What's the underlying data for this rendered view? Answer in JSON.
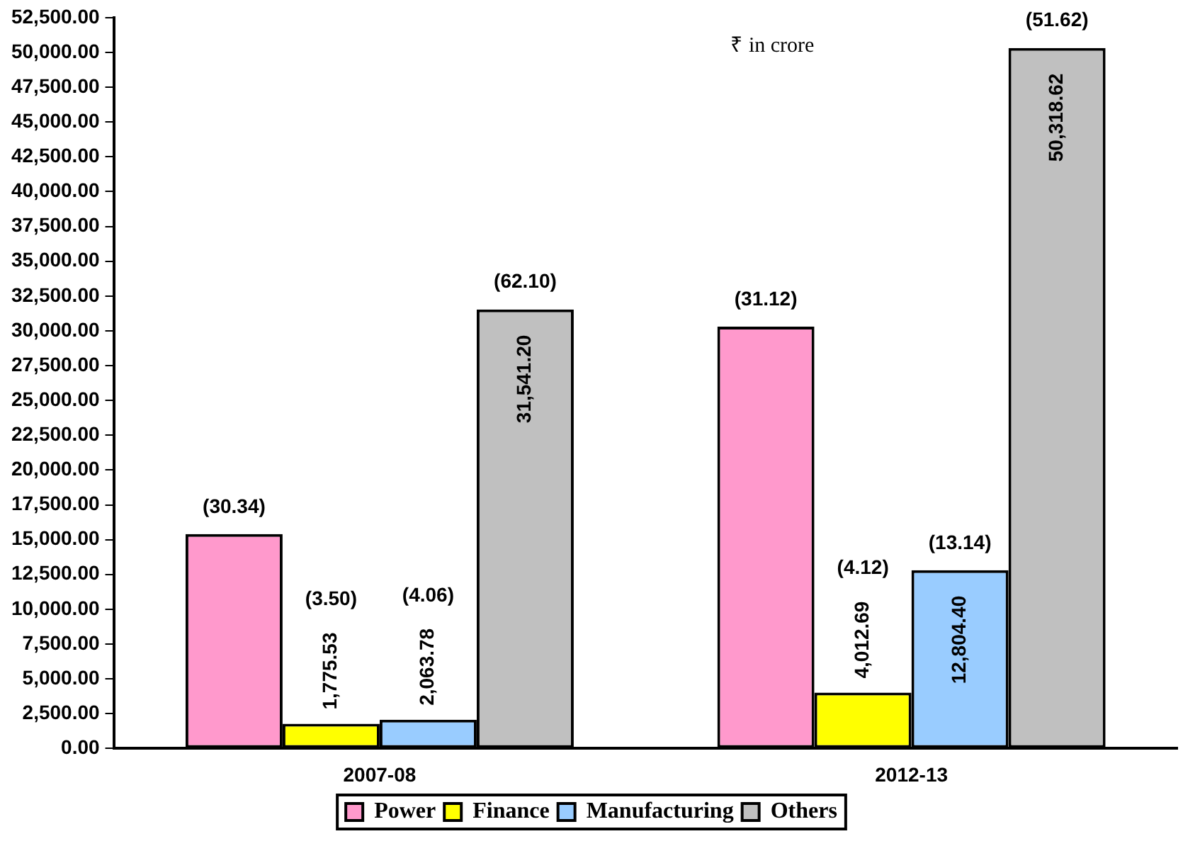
{
  "chart_data": {
    "type": "bar",
    "categories": [
      "2007-08",
      "2012-13"
    ],
    "series": [
      {
        "name": "Power",
        "color": "#ff99cc",
        "values": [
          15400,
          30300
        ],
        "value_labels": [
          null,
          null
        ]
      },
      {
        "name": "Finance",
        "color": "#ffff00",
        "values": [
          1775.53,
          4012.69
        ],
        "value_labels": [
          "1,775.53",
          "4,012.69"
        ]
      },
      {
        "name": "Manufacturing",
        "color": "#99ccff",
        "values": [
          2063.78,
          12804.4
        ],
        "value_labels": [
          "2,063.78",
          "12,804.40"
        ]
      },
      {
        "name": "Others",
        "color": "#c0c0c0",
        "values": [
          31541.2,
          50318.62
        ],
        "value_labels": [
          "31,541.20",
          "50,318.62"
        ]
      }
    ],
    "ylim": [
      0,
      52500
    ],
    "yticks": [
      {
        "value": 0,
        "label": "0.00"
      },
      {
        "value": 2500,
        "label": "2,500.00"
      },
      {
        "value": 5000,
        "label": "5,000.00"
      },
      {
        "value": 7500,
        "label": "7,500.00"
      },
      {
        "value": 10000,
        "label": "10,000.00"
      },
      {
        "value": 12500,
        "label": "12,500.00"
      },
      {
        "value": 15000,
        "label": "15,000.00"
      },
      {
        "value": 17500,
        "label": "17,500.00"
      },
      {
        "value": 20000,
        "label": "20,000.00"
      },
      {
        "value": 22500,
        "label": "22,500.00"
      },
      {
        "value": 25000,
        "label": "25,000.00"
      },
      {
        "value": 27500,
        "label": "27,500.00"
      },
      {
        "value": 30000,
        "label": "30,000.00"
      },
      {
        "value": 32500,
        "label": "32,500.00"
      },
      {
        "value": 35000,
        "label": "35,000.00"
      },
      {
        "value": 37500,
        "label": "37,500.00"
      },
      {
        "value": 40000,
        "label": "40,000.00"
      },
      {
        "value": 42500,
        "label": "42,500.00"
      },
      {
        "value": 45000,
        "label": "45,000.00"
      },
      {
        "value": 47500,
        "label": "47,500.00"
      },
      {
        "value": 50000,
        "label": "50,000.00"
      },
      {
        "value": 52500,
        "label": "52,500.00"
      }
    ],
    "annotations": [
      "₹ in crore",
      "(30.34)",
      "(3.50)",
      "(4.06)",
      "(62.10)",
      "(31.12)",
      "(4.12)",
      "(13.14)",
      "(51.62)"
    ],
    "grid": false,
    "legend": "bottom"
  }
}
